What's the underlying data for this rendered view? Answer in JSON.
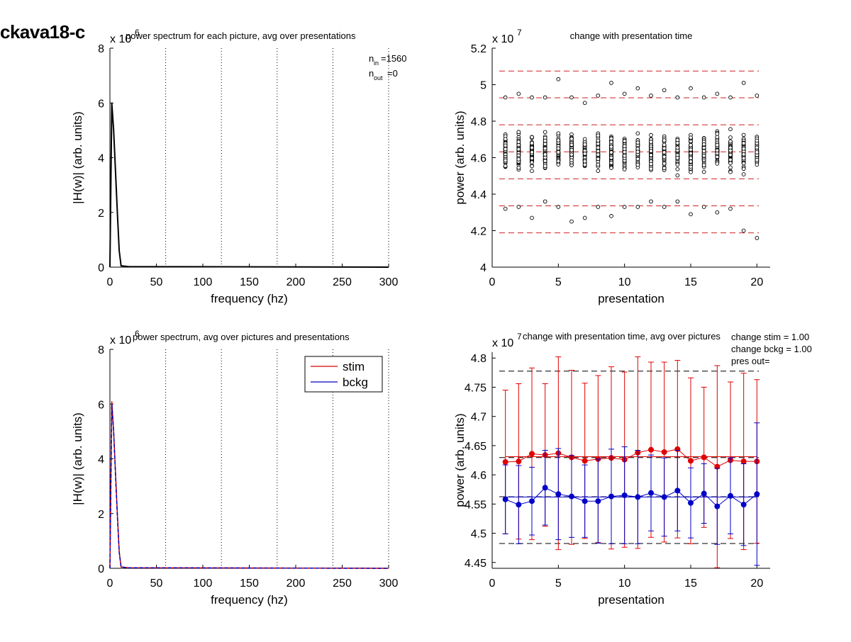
{
  "figure_title": "ckava18-c",
  "chart_data": [
    {
      "type": "line",
      "title": "power spectrum for each picture, avg over presentations",
      "xlabel": "frequency (hz)",
      "ylabel": "|H(w)| (arb. units)",
      "xlim": [
        0,
        300
      ],
      "ylim": [
        0,
        8
      ],
      "y_multiplier": "x 10",
      "y_multiplier_exp": "6",
      "xticks": [
        "0",
        "50",
        "100",
        "150",
        "200",
        "250",
        "300"
      ],
      "yticks": [
        "0",
        "2",
        "4",
        "6",
        "8"
      ],
      "vlines": [
        60,
        120,
        180,
        240,
        300
      ],
      "annotation_line1": "n",
      "annotation_sub1": "in",
      "annotation_val1": "=1560",
      "annotation_line2": "n",
      "annotation_sub2": "out",
      "annotation_val2": "=0",
      "series": [
        {
          "color": "#000000",
          "x": [
            0,
            2,
            4,
            6,
            8,
            10,
            12,
            20,
            300
          ],
          "y": [
            0,
            6.0,
            5.0,
            3.5,
            2.0,
            0.6,
            0.05,
            0.02,
            0.0
          ]
        }
      ]
    },
    {
      "type": "scatter",
      "title": "change with presentation time",
      "xlabel": "presentation",
      "ylabel": "power (arb. units)",
      "xlim": [
        0,
        21
      ],
      "ylim": [
        4.0,
        5.2
      ],
      "y_multiplier": "x 10",
      "y_multiplier_exp": "7",
      "xticks": [
        "0",
        "5",
        "10",
        "15",
        "20"
      ],
      "yticks": [
        "4",
        "4.2",
        "4.4",
        "4.6",
        "4.8",
        "5",
        "5.2"
      ],
      "hlines_dashed_red": [
        4.188,
        4.336,
        4.484,
        4.632,
        4.78,
        4.928,
        5.075
      ],
      "x": [
        1,
        2,
        3,
        4,
        5,
        6,
        7,
        8,
        9,
        10,
        11,
        12,
        13,
        14,
        15,
        16,
        17,
        18,
        19,
        20
      ],
      "min": [
        4.32,
        4.33,
        4.27,
        4.36,
        4.33,
        4.25,
        4.27,
        4.33,
        4.28,
        4.33,
        4.33,
        4.36,
        4.33,
        4.36,
        4.29,
        4.33,
        4.3,
        4.32,
        4.2,
        4.16
      ],
      "max": [
        4.93,
        4.95,
        4.93,
        4.93,
        5.03,
        4.93,
        4.9,
        4.94,
        5.01,
        4.95,
        4.98,
        4.94,
        4.97,
        4.93,
        4.98,
        4.93,
        4.95,
        4.93,
        5.01,
        4.94
      ],
      "n_per_presentation": 78
    },
    {
      "type": "line",
      "title": "power spectrum, avg over pictures and presentations",
      "xlabel": "frequency (hz)",
      "ylabel": "|H(w)| (arb. units)",
      "xlim": [
        0,
        300
      ],
      "ylim": [
        0,
        8
      ],
      "y_multiplier": "x 10",
      "y_multiplier_exp": "6",
      "xticks": [
        "0",
        "50",
        "100",
        "150",
        "200",
        "250",
        "300"
      ],
      "yticks": [
        "0",
        "2",
        "4",
        "6",
        "8"
      ],
      "vlines": [
        60,
        120,
        180,
        240,
        300
      ],
      "legend_position": "top-right",
      "series": [
        {
          "name": "stim",
          "color": "#d40000",
          "x": [
            0,
            2,
            4,
            6,
            8,
            10,
            12,
            20,
            300
          ],
          "y": [
            0,
            6.1,
            5.0,
            3.5,
            2.0,
            0.6,
            0.05,
            0.02,
            0.0
          ]
        },
        {
          "name": "bckg",
          "color": "#0000c0",
          "x": [
            0,
            2,
            4,
            6,
            8,
            10,
            12,
            20,
            300
          ],
          "y": [
            0,
            6.0,
            5.0,
            3.4,
            1.9,
            0.6,
            0.05,
            0.02,
            0.0
          ]
        }
      ]
    },
    {
      "type": "line",
      "title": "change with presentation time, avg over pictures",
      "xlabel": "presentation",
      "ylabel": "power (arb. units)",
      "xlim": [
        0,
        21
      ],
      "ylim": [
        4.44,
        4.81
      ],
      "y_multiplier": "x 10",
      "y_multiplier_exp": "7",
      "xticks": [
        "0",
        "5",
        "10",
        "15",
        "20"
      ],
      "yticks": [
        "4.45",
        "4.5",
        "4.55",
        "4.6",
        "4.65",
        "4.7",
        "4.75",
        "4.8"
      ],
      "annotations": [
        "change stim = 1.00",
        "change bckg = 1.00",
        "pres out="
      ],
      "hlines_dashed_black": [
        4.4825,
        4.5625,
        4.6295,
        4.7775
      ],
      "hline_solid_blue": 4.562,
      "hline_solid_red": 4.631,
      "x": [
        1,
        2,
        3,
        4,
        5,
        6,
        7,
        8,
        9,
        10,
        11,
        12,
        13,
        14,
        15,
        16,
        17,
        18,
        19,
        20
      ],
      "series": [
        {
          "name": "stim",
          "color": "#e00000",
          "values": [
            4.622,
            4.623,
            4.636,
            4.634,
            4.637,
            4.63,
            4.624,
            4.627,
            4.629,
            4.626,
            4.638,
            4.643,
            4.639,
            4.644,
            4.624,
            4.63,
            4.614,
            4.625,
            4.623,
            4.623
          ],
          "err": [
            0.123,
            0.133,
            0.147,
            0.122,
            0.165,
            0.149,
            0.133,
            0.143,
            0.156,
            0.15,
            0.164,
            0.15,
            0.154,
            0.152,
            0.142,
            0.12,
            0.173,
            0.134,
            0.151,
            0.14
          ]
        },
        {
          "name": "bckg",
          "color": "#0000c8",
          "values": [
            4.558,
            4.549,
            4.555,
            4.578,
            4.567,
            4.563,
            4.555,
            4.555,
            4.563,
            4.565,
            4.562,
            4.569,
            4.562,
            4.573,
            4.552,
            4.568,
            4.546,
            4.564,
            4.549,
            4.567
          ],
          "err": [
            0.059,
            0.067,
            0.058,
            0.064,
            0.078,
            0.07,
            0.062,
            0.072,
            0.081,
            0.083,
            0.08,
            0.065,
            0.067,
            0.069,
            0.06,
            0.051,
            0.065,
            0.065,
            0.07,
            0.122
          ]
        }
      ]
    }
  ]
}
